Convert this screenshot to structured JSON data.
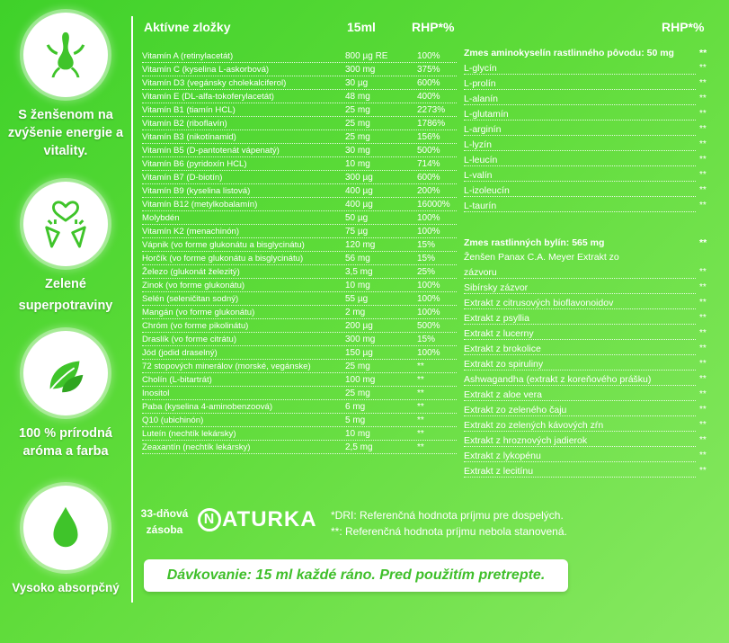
{
  "features": [
    {
      "icon": "ginseng-root-icon",
      "text": "S ženšenom na zvýšenie energie a vitality."
    },
    {
      "icon": "heart-carrots-icon",
      "text": "Zelené superpotraviny"
    },
    {
      "icon": "leaves-icon",
      "text": "100 % prírodná aróma a farba"
    },
    {
      "icon": "drop-icon",
      "text": "Vysoko absorpčný"
    }
  ],
  "table": {
    "header_name": "Aktívne zložky",
    "header_amount": "15ml",
    "header_rhp": "RHP*%",
    "header_rhp_right": "RHP*%",
    "rows": [
      {
        "name": "Vitamín A (retinylacetát)",
        "amount": "800 µg RE",
        "rhp": "100%"
      },
      {
        "name": "Vitamín C (kyselina L-askorbová)",
        "amount": "300 mg",
        "rhp": "375%"
      },
      {
        "name": "Vitamín D3 (vegánsky cholekalciferol)",
        "amount": "30 µg",
        "rhp": "600%"
      },
      {
        "name": "Vitamín E (DL-alfa-tokoferylacetát)",
        "amount": "48 mg",
        "rhp": "400%"
      },
      {
        "name": "Vitamín B1 (tiamín HCL)",
        "amount": "25 mg",
        "rhp": "2273%"
      },
      {
        "name": "Vitamín B2 (riboflavín)",
        "amount": "25 mg",
        "rhp": "1786%"
      },
      {
        "name": "Vitamín B3 (nikotínamid)",
        "amount": "25 mg",
        "rhp": "156%"
      },
      {
        "name": "Vitamín B5 (D-pantotenát vápenatý)",
        "amount": "30 mg",
        "rhp": "500%"
      },
      {
        "name": "Vitamín B6 (pyridoxín HCL)",
        "amount": "10 mg",
        "rhp": "714%"
      },
      {
        "name": "Vitamín B7 (D-biotín)",
        "amount": "300 µg",
        "rhp": "600%"
      },
      {
        "name": "Vitamín B9 (kyselina listová)",
        "amount": "400 µg",
        "rhp": "200%"
      },
      {
        "name": "Vitamín B12 (metylkobalamín)",
        "amount": "400 µg",
        "rhp": "16000%"
      },
      {
        "name": "Molybdén",
        "amount": "50 µg",
        "rhp": "100%"
      },
      {
        "name": "Vitamín K2 (menachinón)",
        "amount": "75 µg",
        "rhp": "100%"
      },
      {
        "name": "Vápnik (vo forme glukonátu a bisglycinátu)",
        "amount": "120 mg",
        "rhp": "15%"
      },
      {
        "name": "Horčík (vo forme glukonátu a bisglycinátu)",
        "amount": "56 mg",
        "rhp": "15%"
      },
      {
        "name": "Železo (glukonát železitý)",
        "amount": "3,5 mg",
        "rhp": "25%"
      },
      {
        "name": "Zinok (vo forme glukonátu)",
        "amount": "10 mg",
        "rhp": "100%"
      },
      {
        "name": "Selén (seleničitan sodný)",
        "amount": "55 µg",
        "rhp": "100%"
      },
      {
        "name": "Mangán (vo forme glukonátu)",
        "amount": "2 mg",
        "rhp": "100%"
      },
      {
        "name": "Chróm (vo forme pikolinátu)",
        "amount": "200 µg",
        "rhp": "500%"
      },
      {
        "name": "Draslík (vo forme citrátu)",
        "amount": "300 mg",
        "rhp": "15%"
      },
      {
        "name": "Jód (jodid draselný)",
        "amount": "150 µg",
        "rhp": "100%"
      },
      {
        "name": "72 stopových minerálov (morské, vegánske)",
        "amount": "25 mg",
        "rhp": "**"
      },
      {
        "name": "Cholín (L-bitartrát)",
        "amount": "100 mg",
        "rhp": "**"
      },
      {
        "name": "Inositol",
        "amount": "25 mg",
        "rhp": "**"
      },
      {
        "name": "Paba (kyselina 4-aminobenzoová)",
        "amount": "6 mg",
        "rhp": "**"
      },
      {
        "name": "Q10 (ubichinón)",
        "amount": "5 mg",
        "rhp": "**"
      },
      {
        "name": "Luteín (nechtík lekársky)",
        "amount": "10 mg",
        "rhp": "**"
      },
      {
        "name": "Zeaxantín (nechtík lekársky)",
        "amount": "2,5 mg",
        "rhp": "**"
      }
    ],
    "amino_title": "Zmes aminokyselín rastlinného pôvodu: 50 mg",
    "amino_title_rhp": "**",
    "amino_rows": [
      {
        "name": "L-glycín",
        "rhp": "**"
      },
      {
        "name": "L-prolín",
        "rhp": "**"
      },
      {
        "name": "L-alanín",
        "rhp": "**"
      },
      {
        "name": "L-glutamín",
        "rhp": "**"
      },
      {
        "name": "L-arginín",
        "rhp": "**"
      },
      {
        "name": "L-lyzín",
        "rhp": "**"
      },
      {
        "name": "L-leucín",
        "rhp": "**"
      },
      {
        "name": "L-valín",
        "rhp": "**"
      },
      {
        "name": "L-izoleucín",
        "rhp": "**"
      },
      {
        "name": "L-taurín",
        "rhp": "**"
      }
    ],
    "herbs_title": "Zmes rastlinných bylín: 565 mg",
    "herbs_title_rhp": "**",
    "herbs_first_line": "Ženšen Panax C.A. Meyer Extrakt zo",
    "herbs_rows": [
      {
        "name": "zázvoru",
        "rhp": "**"
      },
      {
        "name": "Sibírsky zázvor",
        "rhp": "**"
      },
      {
        "name": "Extrakt z citrusových bioflavonoidov",
        "rhp": "**"
      },
      {
        "name": "Extrakt z psyllia",
        "rhp": "**"
      },
      {
        "name": "Extrakt z lucerny",
        "rhp": "**"
      },
      {
        "name": "Extrakt z brokolice",
        "rhp": "**"
      },
      {
        "name": "Extrakt zo spiruliny",
        "rhp": "**"
      },
      {
        "name": "Ashwagandha (extrakt z koreňového prášku)",
        "rhp": "**"
      },
      {
        "name": "Extrakt z aloe vera",
        "rhp": "**"
      },
      {
        "name": "Extrakt zo zeleného čaju",
        "rhp": "**"
      },
      {
        "name": "Extrakt zo zelených kávových zŕn",
        "rhp": "**"
      },
      {
        "name": "Extrakt z hroznových jadierok",
        "rhp": "**"
      },
      {
        "name": "Extrakt z lykopénu",
        "rhp": "**"
      },
      {
        "name": "Extrakt z lecitínu",
        "rhp": "**"
      }
    ]
  },
  "footer": {
    "supply": "33-dňová zásoba",
    "brand_first": "N",
    "brand_rest": "ATURKA",
    "note1": "*DRI: Referenčná hodnota príjmu pre dospelých.",
    "note2": "**: Referenčná hodnota príjmu nebola stanovená.",
    "dosage": "Dávkovanie: 15 ml každé ráno. Pred použitím pretrepte."
  }
}
